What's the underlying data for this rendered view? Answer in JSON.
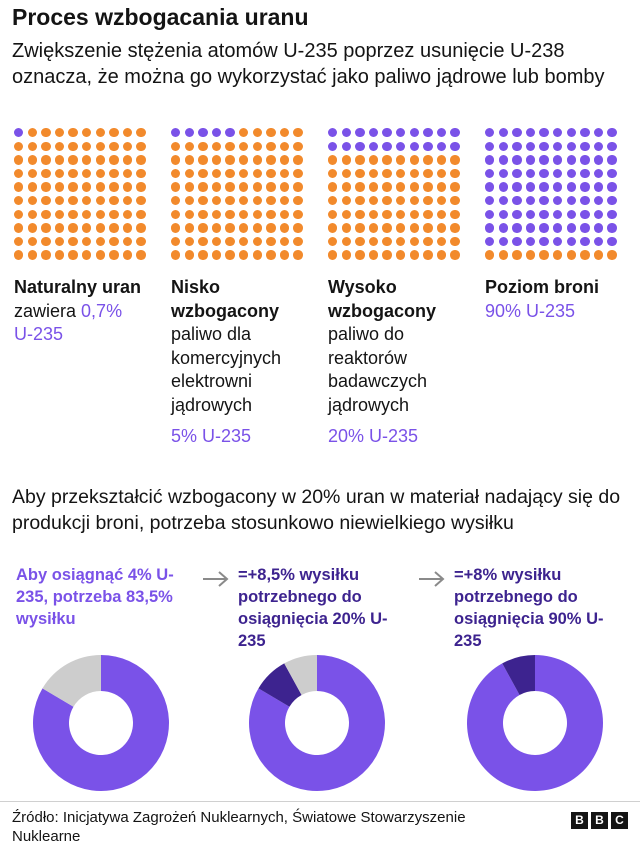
{
  "title": "Proces wzbogacania uranu",
  "subtitle": "Zwiększenie stężenia atomów U-235 poprzez usunięcie U-238 oznacza, że można go wykorzystać jako paliwo jądrowe lub bomby",
  "colors": {
    "u235": "#7a52e8",
    "u238": "#f28a2c",
    "donut_new": "#3d238f",
    "donut_done": "#cdcdcd",
    "step_text": "#3d238f"
  },
  "chart_data": [
    {
      "type": "waffle",
      "grid": [
        10,
        10
      ],
      "panels": [
        {
          "heading": "Naturalny uran",
          "desc": "zawiera",
          "value_label": "0,7%",
          "value_label2": "U-235",
          "purple_dots": 1
        },
        {
          "heading": "Nisko wzbogacony",
          "desc": "paliwo dla komercyjnych elektrowni jądrowych",
          "value_label": "5% U-235",
          "purple_dots": 5
        },
        {
          "heading": "Wysoko wzbogacony",
          "desc": "paliwo do reaktorów badawczych jądrowych",
          "value_label": "20% U-235",
          "purple_dots": 20
        },
        {
          "heading": "Poziom broni",
          "desc": "",
          "value_label": "90% U-235",
          "purple_dots": 90
        }
      ]
    },
    {
      "type": "pie",
      "title": "Aby przekształcić wzbogacony w 20% uran w materiał nadający się do produkcji broni, potrzeba stosunkowo niewielkiego wysiłku",
      "units": "% wysiłku",
      "donuts": [
        {
          "label": "Aby osiągnąć 4% U-235, potrzeba 83,5% wysiłku",
          "prior": 0,
          "new": 83.5
        },
        {
          "label": "=+8,5% wysiłku potrzebnego do osiągnięcia 20% U-235",
          "prior": 83.5,
          "new": 8.5
        },
        {
          "label": "=+8% wysiłku potrzebnego do osiągnięcia 90% U-235",
          "prior": 92,
          "new": 8
        }
      ]
    }
  ],
  "source": "Źródło: Inicjatywa Zagrożeń Nuklearnych, Światowe Stowarzyszenie Nuklearne",
  "logo": [
    "B",
    "B",
    "C"
  ]
}
